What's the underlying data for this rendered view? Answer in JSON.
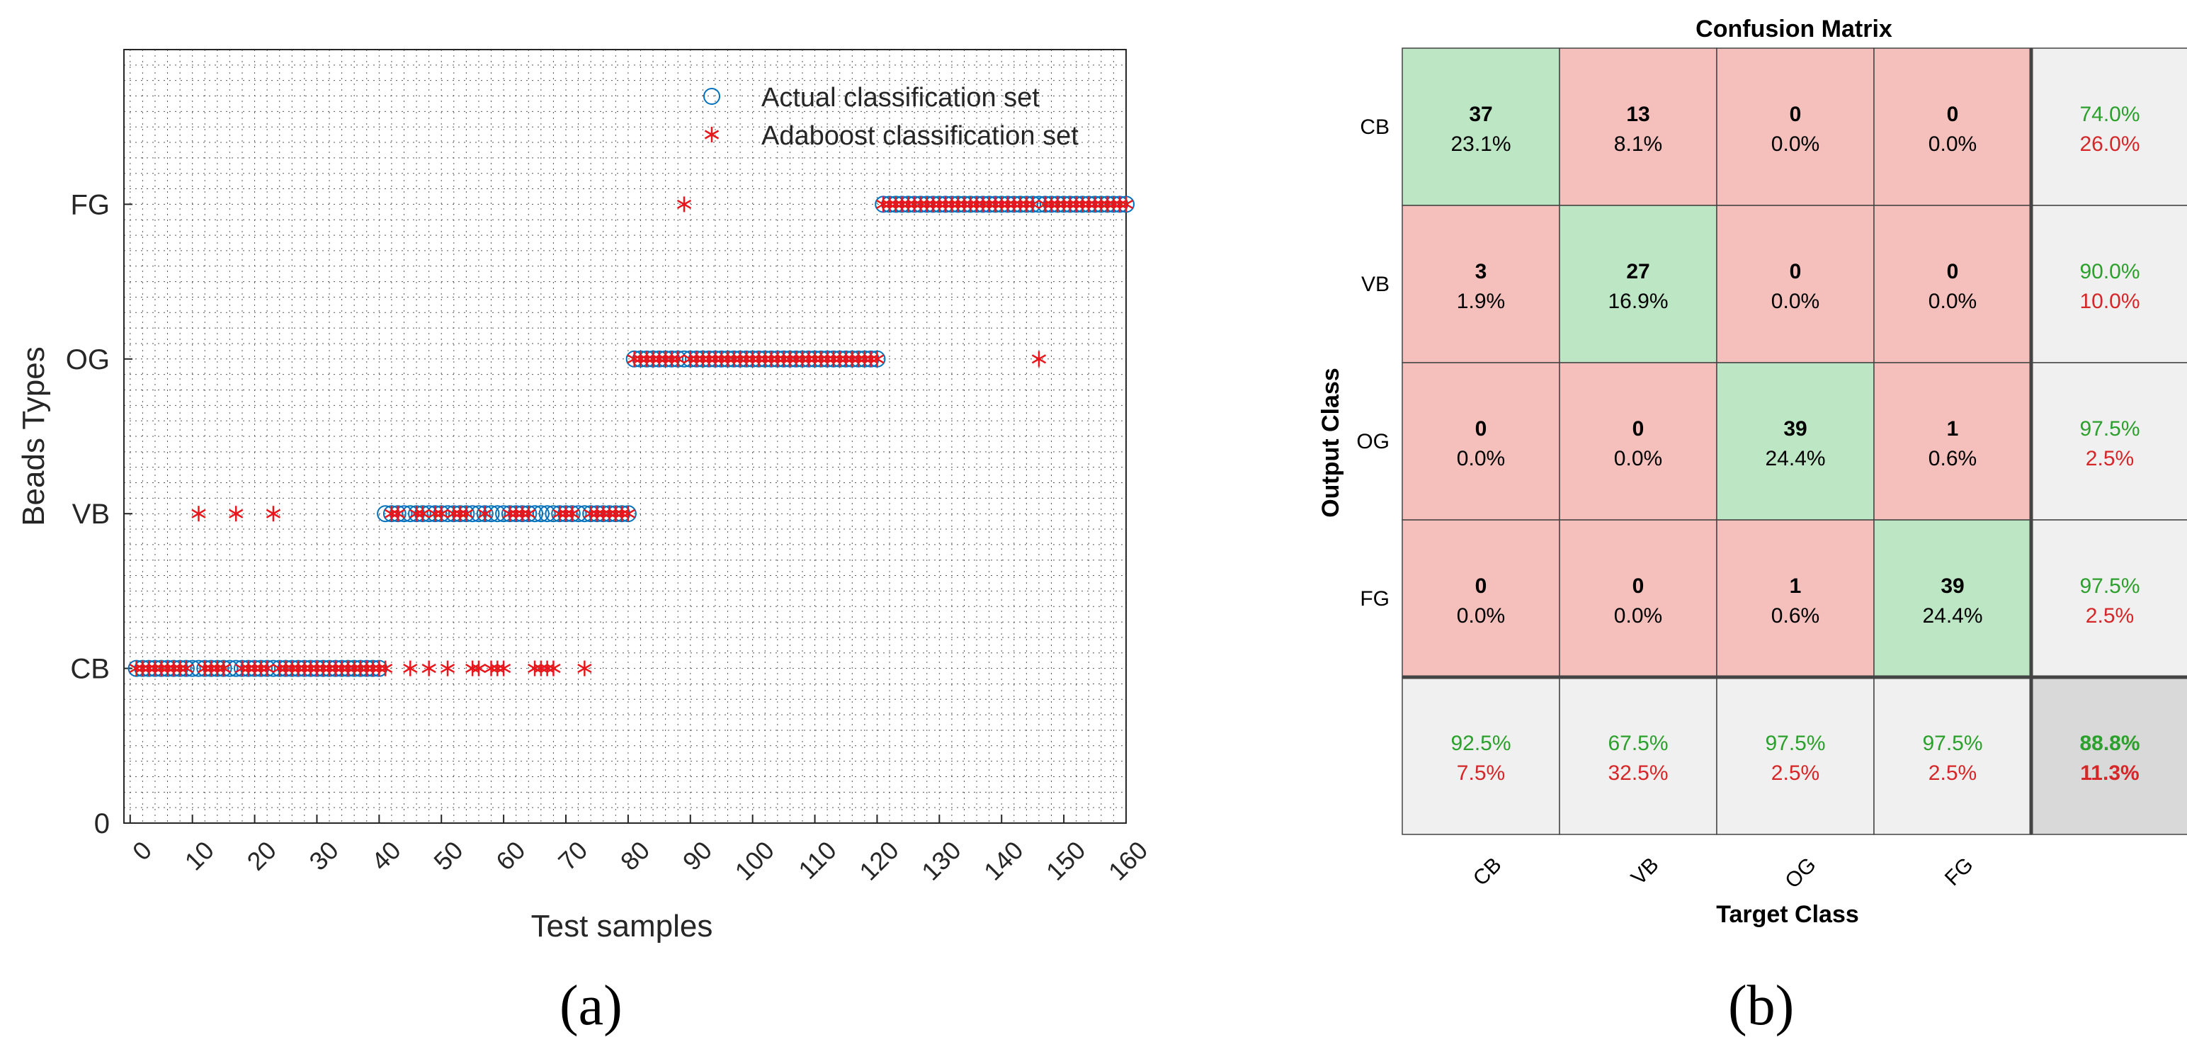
{
  "captions": {
    "a": "(a)",
    "b": "(b)"
  },
  "chart_data": [
    {
      "type": "scatter",
      "title": "",
      "xlabel": "Test samples",
      "ylabel": "Beads Types",
      "xlim": [
        -1,
        160
      ],
      "ylim": [
        0,
        5
      ],
      "xticks": [
        0,
        10,
        20,
        30,
        40,
        50,
        60,
        70,
        80,
        90,
        100,
        110,
        120,
        130,
        140,
        150,
        160
      ],
      "yticks": [
        {
          "value": 0,
          "label": "0"
        },
        {
          "value": 1,
          "label": "CB"
        },
        {
          "value": 2,
          "label": "VB"
        },
        {
          "value": 3,
          "label": "OG"
        },
        {
          "value": 4,
          "label": "FG"
        }
      ],
      "grid": "dotted",
      "legend_position": "top-right",
      "series": [
        {
          "name": "Actual classification set",
          "marker": "circle",
          "color": "#0072BD",
          "segments": [
            {
              "y": 1,
              "x_from": 1,
              "x_to": 40
            },
            {
              "y": 2,
              "x_from": 41,
              "x_to": 80
            },
            {
              "y": 3,
              "x_from": 81,
              "x_to": 120
            },
            {
              "y": 4,
              "x_from": 121,
              "x_to": 160
            }
          ]
        },
        {
          "name": "Adaboost classification set",
          "marker": "asterisk",
          "color": "#E8161A",
          "points": [
            {
              "x": 1,
              "y": 1
            },
            {
              "x": 2,
              "y": 1
            },
            {
              "x": 3,
              "y": 1
            },
            {
              "x": 4,
              "y": 1
            },
            {
              "x": 5,
              "y": 1
            },
            {
              "x": 6,
              "y": 1
            },
            {
              "x": 7,
              "y": 1
            },
            {
              "x": 8,
              "y": 1
            },
            {
              "x": 9,
              "y": 1
            },
            {
              "x": 11,
              "y": 2
            },
            {
              "x": 12,
              "y": 1
            },
            {
              "x": 13,
              "y": 1
            },
            {
              "x": 14,
              "y": 1
            },
            {
              "x": 15,
              "y": 1
            },
            {
              "x": 17,
              "y": 2
            },
            {
              "x": 18,
              "y": 1
            },
            {
              "x": 19,
              "y": 1
            },
            {
              "x": 20,
              "y": 1
            },
            {
              "x": 21,
              "y": 1
            },
            {
              "x": 22,
              "y": 1
            },
            {
              "x": 23,
              "y": 2
            },
            {
              "x": 24,
              "y": 1
            },
            {
              "x": 25,
              "y": 1
            },
            {
              "x": 26,
              "y": 1
            },
            {
              "x": 27,
              "y": 1
            },
            {
              "x": 28,
              "y": 1
            },
            {
              "x": 29,
              "y": 1
            },
            {
              "x": 30,
              "y": 1
            },
            {
              "x": 31,
              "y": 1
            },
            {
              "x": 32,
              "y": 1
            },
            {
              "x": 33,
              "y": 1
            },
            {
              "x": 34,
              "y": 1
            },
            {
              "x": 35,
              "y": 1
            },
            {
              "x": 36,
              "y": 1
            },
            {
              "x": 37,
              "y": 1
            },
            {
              "x": 38,
              "y": 1
            },
            {
              "x": 39,
              "y": 1
            },
            {
              "x": 40,
              "y": 1
            },
            {
              "x": 41,
              "y": 1
            },
            {
              "x": 42,
              "y": 2
            },
            {
              "x": 43,
              "y": 2
            },
            {
              "x": 45,
              "y": 1
            },
            {
              "x": 46,
              "y": 2
            },
            {
              "x": 47,
              "y": 2
            },
            {
              "x": 48,
              "y": 1
            },
            {
              "x": 49,
              "y": 2
            },
            {
              "x": 50,
              "y": 2
            },
            {
              "x": 51,
              "y": 1
            },
            {
              "x": 52,
              "y": 2
            },
            {
              "x": 53,
              "y": 2
            },
            {
              "x": 54,
              "y": 2
            },
            {
              "x": 55,
              "y": 1
            },
            {
              "x": 56,
              "y": 1
            },
            {
              "x": 57,
              "y": 2
            },
            {
              "x": 58,
              "y": 1
            },
            {
              "x": 59,
              "y": 1
            },
            {
              "x": 60,
              "y": 1
            },
            {
              "x": 61,
              "y": 2
            },
            {
              "x": 62,
              "y": 2
            },
            {
              "x": 63,
              "y": 2
            },
            {
              "x": 64,
              "y": 2
            },
            {
              "x": 65,
              "y": 1
            },
            {
              "x": 66,
              "y": 1
            },
            {
              "x": 67,
              "y": 1
            },
            {
              "x": 68,
              "y": 1
            },
            {
              "x": 69,
              "y": 2
            },
            {
              "x": 70,
              "y": 2
            },
            {
              "x": 71,
              "y": 2
            },
            {
              "x": 73,
              "y": 1
            },
            {
              "x": 74,
              "y": 2
            },
            {
              "x": 75,
              "y": 2
            },
            {
              "x": 76,
              "y": 2
            },
            {
              "x": 77,
              "y": 2
            },
            {
              "x": 78,
              "y": 2
            },
            {
              "x": 79,
              "y": 2
            },
            {
              "x": 80,
              "y": 2
            },
            {
              "x": 81,
              "y": 3
            },
            {
              "x": 82,
              "y": 3
            },
            {
              "x": 83,
              "y": 3
            },
            {
              "x": 84,
              "y": 3
            },
            {
              "x": 85,
              "y": 3
            },
            {
              "x": 86,
              "y": 3
            },
            {
              "x": 87,
              "y": 3
            },
            {
              "x": 88,
              "y": 3
            },
            {
              "x": 89,
              "y": 4
            },
            {
              "x": 90,
              "y": 3
            },
            {
              "x": 91,
              "y": 3
            },
            {
              "x": 92,
              "y": 3
            },
            {
              "x": 93,
              "y": 3
            },
            {
              "x": 94,
              "y": 3
            },
            {
              "x": 95,
              "y": 3
            },
            {
              "x": 96,
              "y": 3
            },
            {
              "x": 97,
              "y": 3
            },
            {
              "x": 98,
              "y": 3
            },
            {
              "x": 99,
              "y": 3
            },
            {
              "x": 100,
              "y": 3
            },
            {
              "x": 101,
              "y": 3
            },
            {
              "x": 102,
              "y": 3
            },
            {
              "x": 103,
              "y": 3
            },
            {
              "x": 104,
              "y": 3
            },
            {
              "x": 105,
              "y": 3
            },
            {
              "x": 106,
              "y": 3
            },
            {
              "x": 107,
              "y": 3
            },
            {
              "x": 108,
              "y": 3
            },
            {
              "x": 109,
              "y": 3
            },
            {
              "x": 110,
              "y": 3
            },
            {
              "x": 111,
              "y": 3
            },
            {
              "x": 112,
              "y": 3
            },
            {
              "x": 113,
              "y": 3
            },
            {
              "x": 114,
              "y": 3
            },
            {
              "x": 115,
              "y": 3
            },
            {
              "x": 116,
              "y": 3
            },
            {
              "x": 117,
              "y": 3
            },
            {
              "x": 118,
              "y": 3
            },
            {
              "x": 119,
              "y": 3
            },
            {
              "x": 120,
              "y": 3
            },
            {
              "x": 121,
              "y": 4
            },
            {
              "x": 122,
              "y": 4
            },
            {
              "x": 123,
              "y": 4
            },
            {
              "x": 124,
              "y": 4
            },
            {
              "x": 125,
              "y": 4
            },
            {
              "x": 126,
              "y": 4
            },
            {
              "x": 127,
              "y": 4
            },
            {
              "x": 128,
              "y": 4
            },
            {
              "x": 129,
              "y": 4
            },
            {
              "x": 130,
              "y": 4
            },
            {
              "x": 131,
              "y": 4
            },
            {
              "x": 132,
              "y": 4
            },
            {
              "x": 133,
              "y": 4
            },
            {
              "x": 134,
              "y": 4
            },
            {
              "x": 135,
              "y": 4
            },
            {
              "x": 136,
              "y": 4
            },
            {
              "x": 137,
              "y": 4
            },
            {
              "x": 138,
              "y": 4
            },
            {
              "x": 139,
              "y": 4
            },
            {
              "x": 140,
              "y": 4
            },
            {
              "x": 141,
              "y": 4
            },
            {
              "x": 142,
              "y": 4
            },
            {
              "x": 143,
              "y": 4
            },
            {
              "x": 144,
              "y": 4
            },
            {
              "x": 145,
              "y": 4
            },
            {
              "x": 146,
              "y": 3
            },
            {
              "x": 147,
              "y": 4
            },
            {
              "x": 148,
              "y": 4
            },
            {
              "x": 149,
              "y": 4
            },
            {
              "x": 150,
              "y": 4
            },
            {
              "x": 151,
              "y": 4
            },
            {
              "x": 152,
              "y": 4
            },
            {
              "x": 153,
              "y": 4
            },
            {
              "x": 154,
              "y": 4
            },
            {
              "x": 155,
              "y": 4
            },
            {
              "x": 156,
              "y": 4
            },
            {
              "x": 157,
              "y": 4
            },
            {
              "x": 158,
              "y": 4
            },
            {
              "x": 159,
              "y": 4
            },
            {
              "x": 160,
              "y": 4
            }
          ]
        }
      ]
    },
    {
      "type": "heatmap",
      "title": "Confusion Matrix",
      "xlabel": "Target Class",
      "ylabel": "Output Class",
      "classes": [
        "CB",
        "VB",
        "OG",
        "FG"
      ],
      "cells": [
        [
          {
            "count": "37",
            "pct": "23.1%"
          },
          {
            "count": "13",
            "pct": "8.1%"
          },
          {
            "count": "0",
            "pct": "0.0%"
          },
          {
            "count": "0",
            "pct": "0.0%"
          }
        ],
        [
          {
            "count": "3",
            "pct": "1.9%"
          },
          {
            "count": "27",
            "pct": "16.9%"
          },
          {
            "count": "0",
            "pct": "0.0%"
          },
          {
            "count": "0",
            "pct": "0.0%"
          }
        ],
        [
          {
            "count": "0",
            "pct": "0.0%"
          },
          {
            "count": "0",
            "pct": "0.0%"
          },
          {
            "count": "39",
            "pct": "24.4%"
          },
          {
            "count": "1",
            "pct": "0.6%"
          }
        ],
        [
          {
            "count": "0",
            "pct": "0.0%"
          },
          {
            "count": "0",
            "pct": "0.0%"
          },
          {
            "count": "1",
            "pct": "0.6%"
          },
          {
            "count": "39",
            "pct": "24.4%"
          }
        ]
      ],
      "row_summary": [
        {
          "correct": "74.0%",
          "wrong": "26.0%"
        },
        {
          "correct": "90.0%",
          "wrong": "10.0%"
        },
        {
          "correct": "97.5%",
          "wrong": "2.5%"
        },
        {
          "correct": "97.5%",
          "wrong": "2.5%"
        }
      ],
      "col_summary": [
        {
          "correct": "92.5%",
          "wrong": "7.5%"
        },
        {
          "correct": "67.5%",
          "wrong": "32.5%"
        },
        {
          "correct": "97.5%",
          "wrong": "2.5%"
        },
        {
          "correct": "97.5%",
          "wrong": "2.5%"
        }
      ],
      "overall": {
        "correct": "88.8%",
        "wrong": "11.3%"
      },
      "colors": {
        "diagonal": "#BCE6C4",
        "off_diagonal": "#F5C0BC",
        "summary": "#F0F0F0",
        "overall": "#D9D9D9",
        "correct_text": "#2CA02C",
        "wrong_text": "#D62728"
      }
    }
  ]
}
